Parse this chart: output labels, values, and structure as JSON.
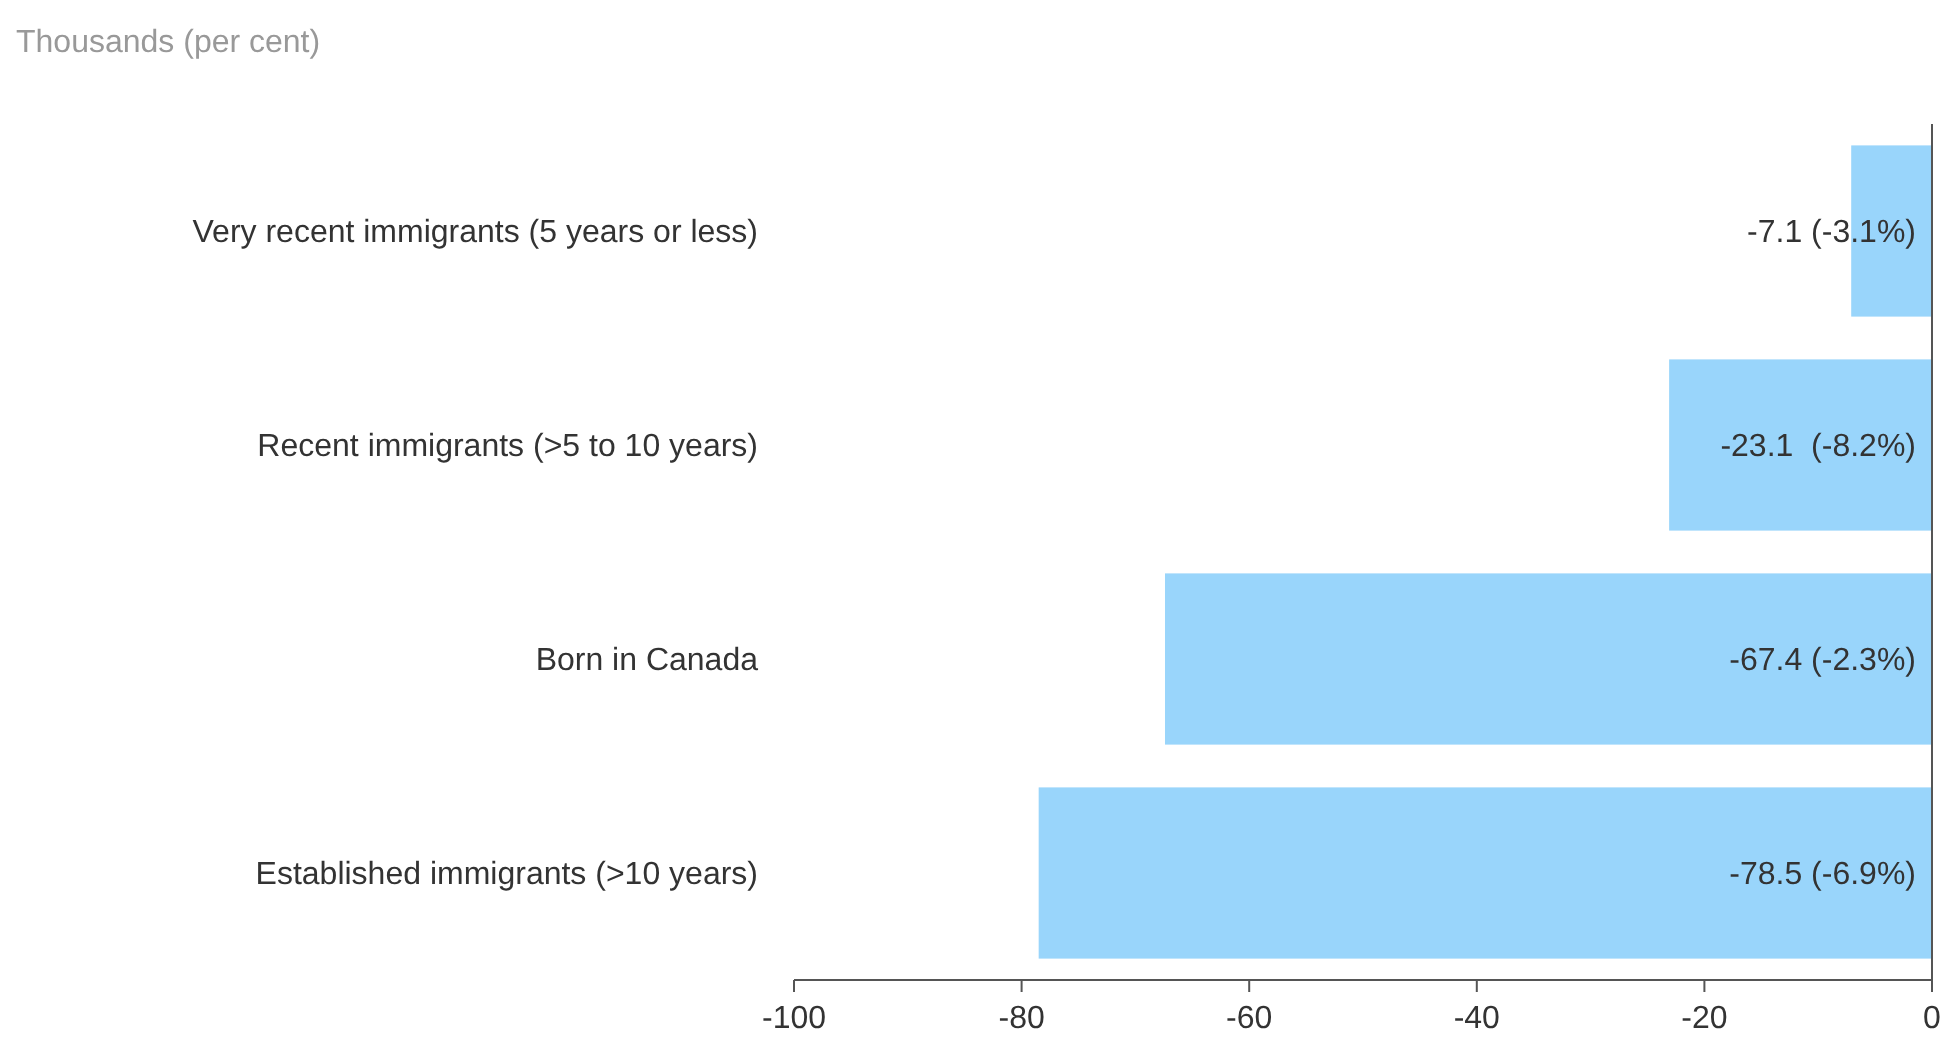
{
  "chart_data": {
    "type": "bar",
    "orientation": "horizontal",
    "title": "Thousands (per cent)",
    "categories": [
      "Very recent immigrants (5 years or less)",
      "Recent immigrants (>5 to 10 years)",
      "Born in Canada",
      "Established immigrants (>10 years)"
    ],
    "values": [
      -7.1,
      -23.1,
      -67.4,
      -78.5
    ],
    "value_labels": [
      "-7.1 (-3.1%)",
      "-23.1  (-8.2%)",
      "-67.4 (-2.3%)",
      "-78.5 (-6.9%)"
    ],
    "color": "#99d5fb",
    "xlim": [
      -100,
      0
    ],
    "xticks": [
      -100,
      -80,
      -60,
      -40,
      -20,
      0
    ],
    "grid": false
  }
}
